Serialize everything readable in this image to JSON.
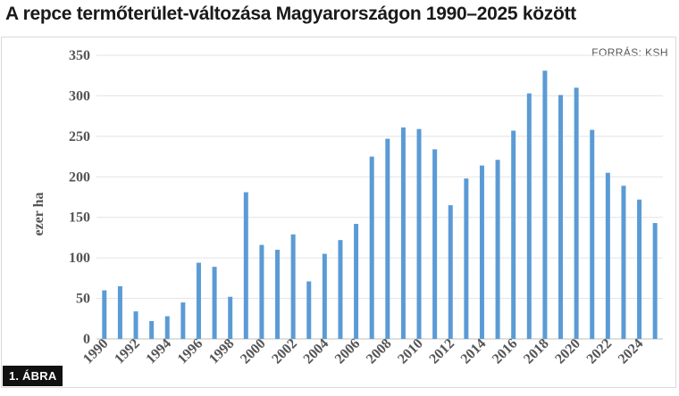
{
  "title": "A repce termőterület-változása Magyarországon 1990–2025 között",
  "source": "FORRÁS: KSH",
  "figure_badge": "1. ÁBRA",
  "chart_data": {
    "type": "bar",
    "title": "A repce termőterület-változása Magyarországon 1990–2025 között",
    "ylabel": "ezer ha",
    "xlabel": "",
    "ylim": [
      0,
      350
    ],
    "yticks": [
      0,
      50,
      100,
      150,
      200,
      250,
      300,
      350
    ],
    "grid": true,
    "bar_color": "#5b9bd5",
    "categories": [
      "1990",
      "1991",
      "1992",
      "1993",
      "1994",
      "1995",
      "1996",
      "1997",
      "1998",
      "1999",
      "2000",
      "2001",
      "2002",
      "2003",
      "2004",
      "2005",
      "2006",
      "2007",
      "2008",
      "2009",
      "2010",
      "2011",
      "2012",
      "2013",
      "2014",
      "2015",
      "2016",
      "2017",
      "2018",
      "2019",
      "2020",
      "2021",
      "2022",
      "2023",
      "2024",
      "2025"
    ],
    "xtick_labels": [
      "1990",
      "1992",
      "1994",
      "1996",
      "1998",
      "2000",
      "2002",
      "2004",
      "2006",
      "2008",
      "2010",
      "2012",
      "2014",
      "2016",
      "2018",
      "2020",
      "2022",
      "2024"
    ],
    "values": [
      60,
      65,
      34,
      22,
      28,
      45,
      94,
      89,
      52,
      181,
      116,
      110,
      129,
      71,
      105,
      122,
      142,
      225,
      247,
      261,
      259,
      234,
      165,
      198,
      214,
      221,
      257,
      303,
      331,
      301,
      310,
      258,
      205,
      189,
      172,
      143
    ]
  }
}
